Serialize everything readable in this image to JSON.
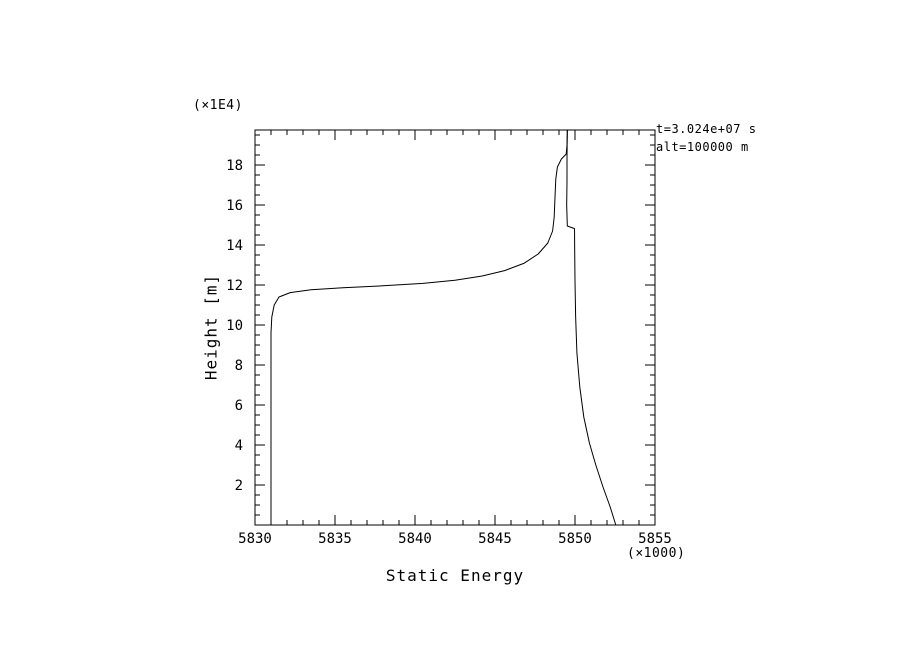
{
  "page": {
    "background": "#ffffff"
  },
  "chart_data": {
    "type": "line",
    "title": "",
    "xlabel": "Static Energy",
    "ylabel": "Height [m]",
    "x_unit_label": "(×1000)",
    "y_unit_label": "(×1E4)",
    "xlim": [
      5830,
      5855
    ],
    "ylim": [
      0,
      19.75
    ],
    "x_ticks": [
      5830,
      5835,
      5840,
      5845,
      5850,
      5855
    ],
    "y_ticks": [
      2,
      4,
      6,
      8,
      10,
      12,
      14,
      16,
      18
    ],
    "x_minor_step": 1,
    "y_minor_step": 0.5,
    "grid": false,
    "legend": "none",
    "line_color": "#000000",
    "annotations": [
      "t=3.024e+07 s",
      "alt=100000 m"
    ],
    "series": [
      {
        "name": "static-energy-profile-left",
        "points": [
          [
            5831.0,
            0.0
          ],
          [
            5831.0,
            9.6
          ],
          [
            5831.05,
            10.4
          ],
          [
            5831.2,
            11.0
          ],
          [
            5831.5,
            11.4
          ],
          [
            5832.2,
            11.62
          ],
          [
            5833.5,
            11.76
          ],
          [
            5835.5,
            11.86
          ],
          [
            5838.0,
            11.96
          ],
          [
            5840.5,
            12.08
          ],
          [
            5842.5,
            12.24
          ],
          [
            5844.2,
            12.45
          ],
          [
            5845.6,
            12.72
          ],
          [
            5846.8,
            13.08
          ],
          [
            5847.7,
            13.55
          ],
          [
            5848.3,
            14.1
          ],
          [
            5848.6,
            14.7
          ],
          [
            5848.7,
            15.4
          ],
          [
            5848.75,
            16.4
          ],
          [
            5848.8,
            17.3
          ],
          [
            5848.9,
            17.9
          ],
          [
            5849.15,
            18.3
          ],
          [
            5849.45,
            18.55
          ],
          [
            5849.5,
            19.0
          ],
          [
            5849.52,
            19.75
          ]
        ]
      },
      {
        "name": "static-energy-profile-right",
        "points": [
          [
            5852.55,
            0.0
          ],
          [
            5852.2,
            0.9
          ],
          [
            5851.75,
            1.9
          ],
          [
            5851.3,
            3.0
          ],
          [
            5850.9,
            4.1
          ],
          [
            5850.55,
            5.4
          ],
          [
            5850.3,
            6.9
          ],
          [
            5850.12,
            8.6
          ],
          [
            5850.04,
            10.4
          ],
          [
            5850.0,
            12.2
          ],
          [
            5849.98,
            13.8
          ],
          [
            5849.97,
            14.82
          ],
          [
            5849.52,
            14.95
          ],
          [
            5849.48,
            16.0
          ],
          [
            5849.5,
            17.2
          ],
          [
            5849.5,
            18.4
          ],
          [
            5849.52,
            19.75
          ]
        ]
      }
    ]
  }
}
